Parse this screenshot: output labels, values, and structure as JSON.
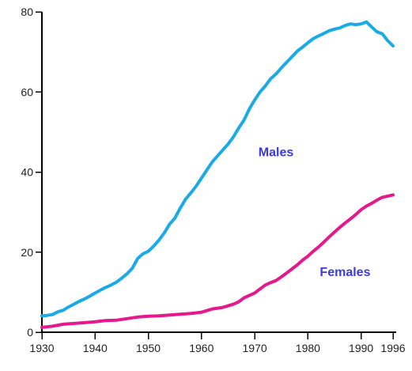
{
  "chart_data": {
    "type": "line",
    "title": "",
    "xlabel": "",
    "ylabel": "",
    "xlim": [
      1930,
      1996
    ],
    "ylim": [
      0,
      80
    ],
    "grid": false,
    "x_ticks": [
      1930,
      1940,
      1950,
      1960,
      1970,
      1980,
      1990,
      1996
    ],
    "y_ticks": [
      0,
      20,
      40,
      60,
      80
    ],
    "series": [
      {
        "name": "Males",
        "color": "#1aabe6",
        "points": [
          [
            1930,
            4.1
          ],
          [
            1931,
            4.2
          ],
          [
            1932,
            4.4
          ],
          [
            1933,
            5.1
          ],
          [
            1934,
            5.5
          ],
          [
            1935,
            6.3
          ],
          [
            1936,
            7.0
          ],
          [
            1937,
            7.7
          ],
          [
            1938,
            8.3
          ],
          [
            1939,
            9.0
          ],
          [
            1940,
            9.8
          ],
          [
            1941,
            10.5
          ],
          [
            1942,
            11.2
          ],
          [
            1943,
            11.8
          ],
          [
            1944,
            12.5
          ],
          [
            1945,
            13.5
          ],
          [
            1946,
            14.6
          ],
          [
            1947,
            16.0
          ],
          [
            1948,
            18.4
          ],
          [
            1949,
            19.6
          ],
          [
            1950,
            20.2
          ],
          [
            1951,
            21.5
          ],
          [
            1952,
            23.0
          ],
          [
            1953,
            24.8
          ],
          [
            1954,
            27.0
          ],
          [
            1955,
            28.5
          ],
          [
            1956,
            31.0
          ],
          [
            1957,
            33.2
          ],
          [
            1958,
            34.8
          ],
          [
            1959,
            36.5
          ],
          [
            1960,
            38.5
          ],
          [
            1961,
            40.5
          ],
          [
            1962,
            42.5
          ],
          [
            1963,
            44.0
          ],
          [
            1964,
            45.5
          ],
          [
            1965,
            47.0
          ],
          [
            1966,
            48.8
          ],
          [
            1967,
            51.0
          ],
          [
            1968,
            53.0
          ],
          [
            1969,
            55.8
          ],
          [
            1970,
            58.0
          ],
          [
            1971,
            60.0
          ],
          [
            1972,
            61.5
          ],
          [
            1973,
            63.3
          ],
          [
            1974,
            64.5
          ],
          [
            1975,
            66.0
          ],
          [
            1976,
            67.4
          ],
          [
            1977,
            68.8
          ],
          [
            1978,
            70.2
          ],
          [
            1979,
            71.2
          ],
          [
            1980,
            72.3
          ],
          [
            1981,
            73.3
          ],
          [
            1982,
            74.0
          ],
          [
            1983,
            74.6
          ],
          [
            1984,
            75.3
          ],
          [
            1985,
            75.7
          ],
          [
            1986,
            76.0
          ],
          [
            1987,
            76.6
          ],
          [
            1988,
            77.0
          ],
          [
            1989,
            76.8
          ],
          [
            1990,
            77.0
          ],
          [
            1991,
            77.5
          ],
          [
            1992,
            76.2
          ],
          [
            1993,
            75.0
          ],
          [
            1994,
            74.5
          ],
          [
            1995,
            72.8
          ],
          [
            1996,
            71.5
          ]
        ]
      },
      {
        "name": "Females",
        "color": "#e3198c",
        "points": [
          [
            1930,
            1.2
          ],
          [
            1932,
            1.5
          ],
          [
            1934,
            2.0
          ],
          [
            1936,
            2.2
          ],
          [
            1938,
            2.4
          ],
          [
            1940,
            2.6
          ],
          [
            1942,
            2.9
          ],
          [
            1944,
            3.0
          ],
          [
            1946,
            3.4
          ],
          [
            1948,
            3.8
          ],
          [
            1950,
            4.0
          ],
          [
            1952,
            4.1
          ],
          [
            1954,
            4.3
          ],
          [
            1956,
            4.5
          ],
          [
            1958,
            4.7
          ],
          [
            1960,
            5.0
          ],
          [
            1961,
            5.4
          ],
          [
            1962,
            5.8
          ],
          [
            1963,
            6.0
          ],
          [
            1964,
            6.2
          ],
          [
            1965,
            6.6
          ],
          [
            1966,
            7.0
          ],
          [
            1967,
            7.6
          ],
          [
            1968,
            8.6
          ],
          [
            1969,
            9.2
          ],
          [
            1970,
            9.8
          ],
          [
            1971,
            10.8
          ],
          [
            1972,
            11.8
          ],
          [
            1973,
            12.4
          ],
          [
            1974,
            12.9
          ],
          [
            1975,
            13.8
          ],
          [
            1976,
            14.8
          ],
          [
            1977,
            15.8
          ],
          [
            1978,
            16.8
          ],
          [
            1979,
            18.0
          ],
          [
            1980,
            19.0
          ],
          [
            1981,
            20.2
          ],
          [
            1982,
            21.3
          ],
          [
            1983,
            22.5
          ],
          [
            1984,
            23.8
          ],
          [
            1985,
            25.0
          ],
          [
            1986,
            26.2
          ],
          [
            1987,
            27.3
          ],
          [
            1988,
            28.3
          ],
          [
            1989,
            29.4
          ],
          [
            1990,
            30.6
          ],
          [
            1991,
            31.5
          ],
          [
            1992,
            32.2
          ],
          [
            1993,
            33.0
          ],
          [
            1994,
            33.7
          ],
          [
            1995,
            34.0
          ],
          [
            1996,
            34.3
          ]
        ]
      }
    ],
    "annotations": [
      {
        "text": "Males",
        "color": "#3a3ae0",
        "x": 1974,
        "y": 44
      },
      {
        "text": "Females",
        "color": "#3a3ae0",
        "x": 1987,
        "y": 14
      }
    ]
  }
}
